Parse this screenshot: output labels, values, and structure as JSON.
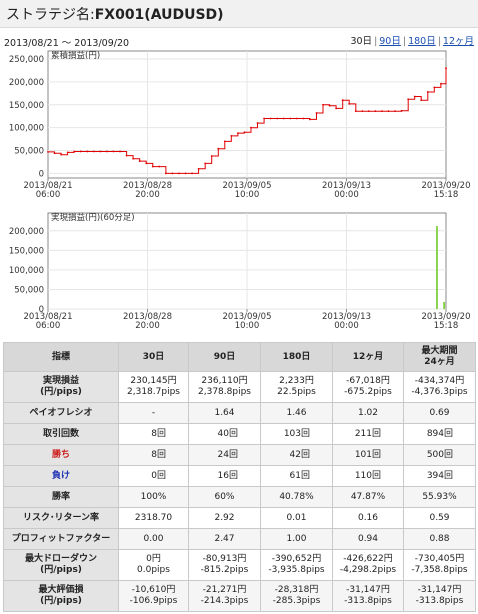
{
  "header": {
    "prefix": "ストラテジ名:",
    "name": "FX001(AUDUSD)"
  },
  "date_range": "2013/08/21 〜 2013/09/20",
  "periods": [
    {
      "label": "30日",
      "active": true
    },
    {
      "label": "90日",
      "active": false
    },
    {
      "label": "180日",
      "active": false
    },
    {
      "label": "12ヶ月",
      "active": false
    }
  ],
  "colors": {
    "series": "#e00000",
    "bars": "#7ecf3c",
    "header_bg": "#d8d8d8"
  },
  "x_ticks": [
    {
      "date": "2013/08/21",
      "time": "06:00"
    },
    {
      "date": "2013/08/28",
      "time": "20:00"
    },
    {
      "date": "2013/09/05",
      "time": "10:00"
    },
    {
      "date": "2013/09/13",
      "time": "00:00"
    },
    {
      "date": "2013/09/20",
      "time": "15:18"
    }
  ],
  "chart_data": [
    {
      "type": "line",
      "title": "累積損益(円)",
      "ylim": [
        -10000,
        250000
      ],
      "y_ticks": [
        "250,000",
        "200,000",
        "150,000",
        "100,000",
        "50,000",
        "0"
      ],
      "y_tick_values": [
        250000,
        200000,
        150000,
        100000,
        50000,
        0
      ],
      "x_range": [
        0,
        30.39
      ],
      "series": [
        {
          "x": [
            0,
            0.5,
            1,
            1.5,
            2,
            2.5,
            3,
            3.5,
            4,
            4.5,
            5,
            5.5,
            6,
            6.5,
            7,
            7.5,
            8,
            8.5,
            9,
            9.5,
            10,
            10.5,
            11,
            11.5,
            12,
            12.5,
            13,
            13.5,
            14,
            14.5,
            15,
            15.5,
            16,
            16.5,
            17,
            17.5,
            18,
            18.5,
            19,
            19.5,
            20,
            20.5,
            21,
            21.5,
            22,
            22.5,
            23,
            23.5,
            24,
            24.5,
            25,
            25.5,
            26,
            26.5,
            27,
            27.5,
            28,
            28.5,
            29,
            29.5,
            30,
            30.39
          ],
          "y": [
            47000,
            44000,
            41000,
            46000,
            48000,
            48000,
            48000,
            48000,
            48000,
            48000,
            48000,
            48000,
            39000,
            32000,
            27000,
            22000,
            15000,
            15000,
            0,
            0,
            0,
            0,
            0,
            10000,
            22000,
            38000,
            54000,
            70000,
            82000,
            88000,
            90000,
            100000,
            110000,
            120000,
            120000,
            120000,
            120000,
            120000,
            120000,
            120000,
            118000,
            132000,
            150000,
            148000,
            142000,
            160000,
            152000,
            136000,
            136000,
            136000,
            136000,
            136000,
            136000,
            136000,
            137000,
            162000,
            168000,
            160000,
            178000,
            188000,
            196000,
            230000
          ]
        }
      ]
    },
    {
      "type": "bar",
      "title": "実現損益(円)(60分足)",
      "ylim": [
        0,
        225000
      ],
      "y_ticks": [
        "200,000",
        "150,000",
        "100,000",
        "50,000",
        "0"
      ],
      "y_tick_values": [
        200000,
        150000,
        100000,
        50000,
        0
      ],
      "x_range": [
        0,
        30.39
      ],
      "bars": [
        {
          "x": 29.7,
          "value": 212000
        },
        {
          "x": 30.25,
          "value": 18000
        }
      ]
    }
  ],
  "table": {
    "headers": [
      "指標",
      "30日",
      "90日",
      "180日",
      "12ヶ月",
      "最大期間\n24ヶ月"
    ],
    "rows": [
      {
        "label": "実現損益\n(円/pips)",
        "cells": [
          "230,145円\n2,318.7pips",
          "236,110円\n2,378.8pips",
          "2,233円\n22.5pips",
          "-67,018円\n-675.2pips",
          "-434,374円\n-4,376.3pips"
        ]
      },
      {
        "label": "ペイオフレシオ",
        "cells": [
          "-",
          "1.64",
          "1.46",
          "1.02",
          "0.69"
        ]
      },
      {
        "label": "取引回数",
        "cells": [
          "8回",
          "40回",
          "103回",
          "211回",
          "894回"
        ],
        "align": "right"
      },
      {
        "label": "勝ち",
        "color": "red",
        "cells": [
          "8回",
          "24回",
          "42回",
          "101回",
          "500回"
        ],
        "align": "right"
      },
      {
        "label": "負け",
        "color": "blue",
        "cells": [
          "0回",
          "16回",
          "61回",
          "110回",
          "394回"
        ],
        "align": "right"
      },
      {
        "label": "勝率",
        "cells": [
          "100%",
          "60%",
          "40.78%",
          "47.87%",
          "55.93%"
        ]
      },
      {
        "label": "リスク･リターン率",
        "cells": [
          "2318.70",
          "2.92",
          "0.01",
          "0.16",
          "0.59"
        ]
      },
      {
        "label": "プロフィットファクター",
        "cells": [
          "0.00",
          "2.47",
          "1.00",
          "0.94",
          "0.88"
        ]
      },
      {
        "label": "最大ドローダウン\n(円/pips)",
        "cells": [
          "0円\n0.0pips",
          "-80,913円\n-815.2pips",
          "-390,652円\n-3,935.8pips",
          "-426,622円\n-4,298.2pips",
          "-730,405円\n-7,358.8pips"
        ]
      },
      {
        "label": "最大評価損\n(円/pips)",
        "cells": [
          "-10,610円\n-106.9pips",
          "-21,271円\n-214.3pips",
          "-28,318円\n-285.3pips",
          "-31,147円\n-313.8pips",
          "-31,147円\n-313.8pips"
        ]
      }
    ]
  }
}
